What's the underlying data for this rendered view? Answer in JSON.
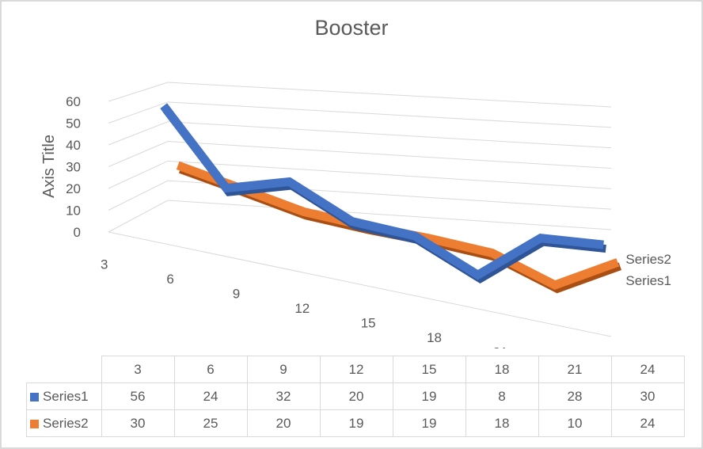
{
  "chart_data": {
    "type": "line",
    "title": "Booster",
    "ylabel": "Axis Title",
    "xlabel": "",
    "categories": [
      "3",
      "6",
      "9",
      "12",
      "15",
      "18",
      "21",
      "24"
    ],
    "y_ticks": [
      "0",
      "10",
      "20",
      "30",
      "40",
      "50",
      "60"
    ],
    "ylim": [
      0,
      60
    ],
    "grid": true,
    "three_d": true,
    "series": [
      {
        "name": "Series1",
        "color": "#4472c4",
        "values": [
          56,
          24,
          32,
          20,
          19,
          8,
          28,
          30
        ]
      },
      {
        "name": "Series2",
        "color": "#ed7d31",
        "values": [
          30,
          25,
          20,
          19,
          19,
          18,
          10,
          24
        ]
      }
    ],
    "depth_labels": [
      "Series2",
      "Series1"
    ],
    "data_table": true
  }
}
